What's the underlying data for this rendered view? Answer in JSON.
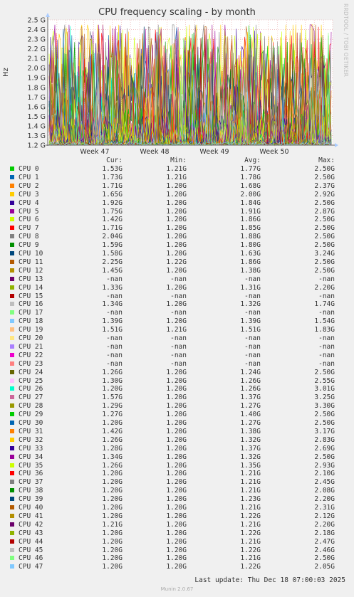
{
  "chart_data": {
    "type": "line",
    "title": "CPU frequency scaling - by month",
    "ylabel": "Hz",
    "ylim": [
      1.2,
      2.5
    ],
    "y_ticks": [
      "1.2 G",
      "1.3 G",
      "1.4 G",
      "1.5 G",
      "1.6 G",
      "1.7 G",
      "1.8 G",
      "1.9 G",
      "2.0 G",
      "2.1 G",
      "2.2 G",
      "2.3 G",
      "2.4 G",
      "2.5 G"
    ],
    "x_ticks": [
      "Week 47",
      "Week 48",
      "Week 49",
      "Week 50"
    ],
    "grid": true,
    "legend_headers": {
      "cur": "Cur:",
      "min": "Min:",
      "avg": "Avg:",
      "max": "Max:"
    },
    "series": [
      {
        "name": "CPU 0",
        "color": "#00cc00",
        "cur": "1.53G",
        "min": "1.21G",
        "avg": "1.77G",
        "max": "2.50G"
      },
      {
        "name": "CPU 1",
        "color": "#0066b3",
        "cur": "1.73G",
        "min": "1.21G",
        "avg": "1.78G",
        "max": "2.50G"
      },
      {
        "name": "CPU 2",
        "color": "#ff8000",
        "cur": "1.71G",
        "min": "1.20G",
        "avg": "1.68G",
        "max": "2.37G"
      },
      {
        "name": "CPU 3",
        "color": "#ffcc00",
        "cur": "1.65G",
        "min": "1.20G",
        "avg": "2.00G",
        "max": "2.92G"
      },
      {
        "name": "CPU 4",
        "color": "#330099",
        "cur": "1.92G",
        "min": "1.20G",
        "avg": "1.84G",
        "max": "2.50G"
      },
      {
        "name": "CPU 5",
        "color": "#990099",
        "cur": "1.75G",
        "min": "1.20G",
        "avg": "1.91G",
        "max": "2.87G"
      },
      {
        "name": "CPU 6",
        "color": "#ccff00",
        "cur": "1.42G",
        "min": "1.20G",
        "avg": "1.86G",
        "max": "2.50G"
      },
      {
        "name": "CPU 7",
        "color": "#ff0000",
        "cur": "1.71G",
        "min": "1.20G",
        "avg": "1.85G",
        "max": "2.50G"
      },
      {
        "name": "CPU 8",
        "color": "#808080",
        "cur": "2.04G",
        "min": "1.20G",
        "avg": "1.88G",
        "max": "2.50G"
      },
      {
        "name": "CPU 9",
        "color": "#008f00",
        "cur": "1.59G",
        "min": "1.20G",
        "avg": "1.80G",
        "max": "2.50G"
      },
      {
        "name": "CPU 10",
        "color": "#00487d",
        "cur": "1.58G",
        "min": "1.20G",
        "avg": "1.63G",
        "max": "3.24G"
      },
      {
        "name": "CPU 11",
        "color": "#b35a00",
        "cur": "2.25G",
        "min": "1.22G",
        "avg": "1.86G",
        "max": "2.50G"
      },
      {
        "name": "CPU 12",
        "color": "#b38f00",
        "cur": "1.45G",
        "min": "1.20G",
        "avg": "1.38G",
        "max": "2.50G"
      },
      {
        "name": "CPU 13",
        "color": "#6b006b",
        "cur": "-nan",
        "min": "-nan",
        "avg": "-nan",
        "max": "-nan"
      },
      {
        "name": "CPU 14",
        "color": "#8fb300",
        "cur": "1.33G",
        "min": "1.20G",
        "avg": "1.31G",
        "max": "2.20G"
      },
      {
        "name": "CPU 15",
        "color": "#b30000",
        "cur": "-nan",
        "min": "-nan",
        "avg": "-nan",
        "max": "-nan"
      },
      {
        "name": "CPU 16",
        "color": "#bebebe",
        "cur": "1.34G",
        "min": "1.20G",
        "avg": "1.32G",
        "max": "1.74G"
      },
      {
        "name": "CPU 17",
        "color": "#80ff80",
        "cur": "-nan",
        "min": "-nan",
        "avg": "-nan",
        "max": "-nan"
      },
      {
        "name": "CPU 18",
        "color": "#80c9ff",
        "cur": "1.39G",
        "min": "1.20G",
        "avg": "1.39G",
        "max": "1.54G"
      },
      {
        "name": "CPU 19",
        "color": "#ffc080",
        "cur": "1.51G",
        "min": "1.21G",
        "avg": "1.51G",
        "max": "1.83G"
      },
      {
        "name": "CPU 20",
        "color": "#ffe680",
        "cur": "-nan",
        "min": "-nan",
        "avg": "-nan",
        "max": "-nan"
      },
      {
        "name": "CPU 21",
        "color": "#aa80ff",
        "cur": "-nan",
        "min": "-nan",
        "avg": "-nan",
        "max": "-nan"
      },
      {
        "name": "CPU 22",
        "color": "#ee00cc",
        "cur": "-nan",
        "min": "-nan",
        "avg": "-nan",
        "max": "-nan"
      },
      {
        "name": "CPU 23",
        "color": "#ff8080",
        "cur": "-nan",
        "min": "-nan",
        "avg": "-nan",
        "max": "-nan"
      },
      {
        "name": "CPU 24",
        "color": "#666600",
        "cur": "1.26G",
        "min": "1.20G",
        "avg": "1.24G",
        "max": "2.50G"
      },
      {
        "name": "CPU 25",
        "color": "#ffbfff",
        "cur": "1.30G",
        "min": "1.20G",
        "avg": "1.26G",
        "max": "2.55G"
      },
      {
        "name": "CPU 26",
        "color": "#00ffcc",
        "cur": "1.20G",
        "min": "1.20G",
        "avg": "1.26G",
        "max": "3.01G"
      },
      {
        "name": "CPU 27",
        "color": "#cc6699",
        "cur": "1.57G",
        "min": "1.20G",
        "avg": "1.37G",
        "max": "3.25G"
      },
      {
        "name": "CPU 28",
        "color": "#999900",
        "cur": "1.29G",
        "min": "1.20G",
        "avg": "1.27G",
        "max": "3.30G"
      },
      {
        "name": "CPU 29",
        "color": "#00cc00",
        "cur": "1.27G",
        "min": "1.20G",
        "avg": "1.40G",
        "max": "2.50G"
      },
      {
        "name": "CPU 30",
        "color": "#0066b3",
        "cur": "1.20G",
        "min": "1.20G",
        "avg": "1.27G",
        "max": "2.50G"
      },
      {
        "name": "CPU 31",
        "color": "#ff8000",
        "cur": "1.42G",
        "min": "1.20G",
        "avg": "1.38G",
        "max": "3.17G"
      },
      {
        "name": "CPU 32",
        "color": "#ffcc00",
        "cur": "1.26G",
        "min": "1.20G",
        "avg": "1.32G",
        "max": "2.83G"
      },
      {
        "name": "CPU 33",
        "color": "#330099",
        "cur": "1.28G",
        "min": "1.20G",
        "avg": "1.37G",
        "max": "2.69G"
      },
      {
        "name": "CPU 34",
        "color": "#990099",
        "cur": "1.34G",
        "min": "1.20G",
        "avg": "1.32G",
        "max": "2.50G"
      },
      {
        "name": "CPU 35",
        "color": "#ccff00",
        "cur": "1.26G",
        "min": "1.20G",
        "avg": "1.35G",
        "max": "2.93G"
      },
      {
        "name": "CPU 36",
        "color": "#ff0000",
        "cur": "1.20G",
        "min": "1.20G",
        "avg": "1.21G",
        "max": "2.10G"
      },
      {
        "name": "CPU 37",
        "color": "#808080",
        "cur": "1.20G",
        "min": "1.20G",
        "avg": "1.21G",
        "max": "2.45G"
      },
      {
        "name": "CPU 38",
        "color": "#008f00",
        "cur": "1.20G",
        "min": "1.20G",
        "avg": "1.21G",
        "max": "2.08G"
      },
      {
        "name": "CPU 39",
        "color": "#00487d",
        "cur": "1.20G",
        "min": "1.20G",
        "avg": "1.23G",
        "max": "2.20G"
      },
      {
        "name": "CPU 40",
        "color": "#b35a00",
        "cur": "1.20G",
        "min": "1.20G",
        "avg": "1.21G",
        "max": "2.31G"
      },
      {
        "name": "CPU 41",
        "color": "#b38f00",
        "cur": "1.20G",
        "min": "1.20G",
        "avg": "1.22G",
        "max": "2.12G"
      },
      {
        "name": "CPU 42",
        "color": "#6b006b",
        "cur": "1.21G",
        "min": "1.20G",
        "avg": "1.21G",
        "max": "2.20G"
      },
      {
        "name": "CPU 43",
        "color": "#8fb300",
        "cur": "1.20G",
        "min": "1.20G",
        "avg": "1.22G",
        "max": "2.18G"
      },
      {
        "name": "CPU 44",
        "color": "#b30000",
        "cur": "1.20G",
        "min": "1.20G",
        "avg": "1.21G",
        "max": "2.47G"
      },
      {
        "name": "CPU 45",
        "color": "#bebebe",
        "cur": "1.20G",
        "min": "1.20G",
        "avg": "1.22G",
        "max": "2.46G"
      },
      {
        "name": "CPU 46",
        "color": "#80ff80",
        "cur": "1.20G",
        "min": "1.20G",
        "avg": "1.21G",
        "max": "2.50G"
      },
      {
        "name": "CPU 47",
        "color": "#80c9ff",
        "cur": "1.20G",
        "min": "1.20G",
        "avg": "1.22G",
        "max": "2.05G"
      }
    ]
  },
  "side_label": "RRDTOOL / TOBI OETIKER",
  "last_update": "Last update: Thu Dec 18 07:00:03 2025",
  "footer": "Munin 2.0.67"
}
